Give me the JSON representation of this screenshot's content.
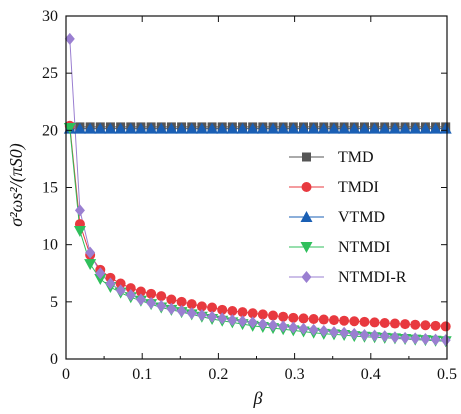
{
  "chart_data": {
    "type": "line",
    "xlabel": "β",
    "ylabel": "σ²ωs²/(πS0)",
    "xlim": [
      0,
      0.5
    ],
    "ylim": [
      0,
      30
    ],
    "xticks": [
      0,
      0.1,
      0.2,
      0.3,
      0.4,
      0.5
    ],
    "xtick_labels": [
      "0",
      "0.1",
      "0.2",
      "0.3",
      "0.4",
      "0.5"
    ],
    "yticks": [
      0,
      5,
      10,
      15,
      20,
      25,
      30
    ],
    "ytick_labels": [
      "0",
      "5",
      "10",
      "15",
      "20",
      "25",
      "30"
    ],
    "grid": false,
    "legend_position": "right",
    "x": [
      0.005,
      0.0183,
      0.0317,
      0.045,
      0.0583,
      0.0717,
      0.085,
      0.0983,
      0.1117,
      0.125,
      0.1383,
      0.1517,
      0.165,
      0.1783,
      0.1917,
      0.205,
      0.2183,
      0.2317,
      0.245,
      0.2583,
      0.2717,
      0.285,
      0.2983,
      0.3117,
      0.325,
      0.3383,
      0.3517,
      0.365,
      0.3783,
      0.3917,
      0.405,
      0.4183,
      0.4317,
      0.445,
      0.4583,
      0.4717,
      0.485,
      0.4983
    ],
    "series": [
      {
        "name": "TMD",
        "color": "#555555",
        "marker": "square",
        "values": [
          20.3,
          20.3,
          20.3,
          20.3,
          20.3,
          20.3,
          20.3,
          20.3,
          20.3,
          20.3,
          20.3,
          20.3,
          20.3,
          20.3,
          20.3,
          20.3,
          20.3,
          20.3,
          20.3,
          20.3,
          20.3,
          20.3,
          20.3,
          20.3,
          20.3,
          20.3,
          20.3,
          20.3,
          20.3,
          20.3,
          20.3,
          20.3,
          20.3,
          20.3,
          20.3,
          20.3,
          20.3,
          20.3
        ]
      },
      {
        "name": "TMDI",
        "color": "#e8393f",
        "marker": "circle",
        "values": [
          20.4,
          11.8,
          9.1,
          7.8,
          7.1,
          6.6,
          6.2,
          5.9,
          5.7,
          5.5,
          5.2,
          5.0,
          4.8,
          4.6,
          4.5,
          4.3,
          4.2,
          4.1,
          4.0,
          3.9,
          3.8,
          3.7,
          3.6,
          3.55,
          3.5,
          3.45,
          3.4,
          3.35,
          3.3,
          3.25,
          3.2,
          3.15,
          3.1,
          3.05,
          3.0,
          2.95,
          2.9,
          2.85
        ]
      },
      {
        "name": "VTMD",
        "color": "#1a5fb4",
        "marker": "triangle-up",
        "values": [
          20.15,
          20.15,
          20.15,
          20.15,
          20.15,
          20.15,
          20.15,
          20.15,
          20.15,
          20.15,
          20.15,
          20.15,
          20.15,
          20.15,
          20.15,
          20.15,
          20.15,
          20.15,
          20.15,
          20.15,
          20.15,
          20.15,
          20.15,
          20.15,
          20.15,
          20.15,
          20.15,
          20.15,
          20.15,
          20.15,
          20.15,
          20.15,
          20.15,
          20.15,
          20.15,
          20.15,
          20.15,
          20.15
        ]
      },
      {
        "name": "NTMDI",
        "color": "#2fbf5b",
        "marker": "triangle-down",
        "values": [
          20.2,
          11.2,
          8.3,
          7.0,
          6.3,
          5.8,
          5.4,
          5.1,
          4.8,
          4.5,
          4.3,
          4.1,
          3.9,
          3.7,
          3.5,
          3.35,
          3.2,
          3.05,
          2.9,
          2.8,
          2.7,
          2.6,
          2.5,
          2.4,
          2.3,
          2.2,
          2.15,
          2.1,
          2.0,
          1.95,
          1.9,
          1.85,
          1.8,
          1.75,
          1.7,
          1.65,
          1.6,
          1.55
        ]
      },
      {
        "name": "NTMDI-R",
        "color": "#9a7fd1",
        "marker": "diamond",
        "values": [
          28.0,
          13.0,
          9.3,
          7.5,
          6.6,
          6.0,
          5.6,
          5.2,
          4.9,
          4.65,
          4.4,
          4.2,
          4.0,
          3.85,
          3.7,
          3.55,
          3.4,
          3.3,
          3.2,
          3.05,
          2.95,
          2.85,
          2.75,
          2.65,
          2.55,
          2.45,
          2.35,
          2.3,
          2.2,
          2.1,
          2.05,
          2.0,
          1.9,
          1.85,
          1.8,
          1.75,
          1.7,
          1.65
        ]
      }
    ]
  }
}
